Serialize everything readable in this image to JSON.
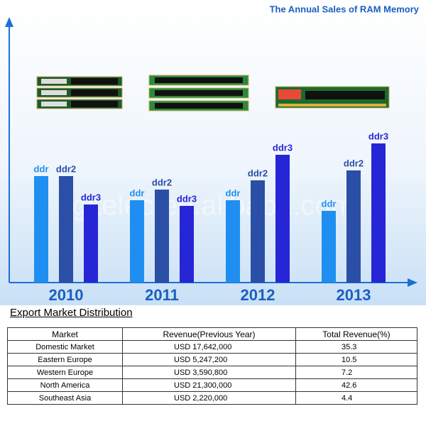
{
  "chart_data": {
    "type": "bar",
    "title": "The Annual Sales of RAM Memory",
    "watermark": "gitelec.en.alibaba.com",
    "categories": [
      "2010",
      "2011",
      "2012",
      "2013"
    ],
    "series": [
      {
        "name": "ddr",
        "color": "#1e8ff0",
        "values": [
          150,
          116,
          116,
          101
        ]
      },
      {
        "name": "ddr2",
        "color": "#2b4ea6",
        "values": [
          150,
          131,
          144,
          158
        ]
      },
      {
        "name": "ddr3",
        "color": "#2626d6",
        "values": [
          110,
          108,
          180,
          196
        ]
      }
    ],
    "ylim": [
      0,
      360
    ]
  },
  "table": {
    "title": "Export Market Distribution",
    "columns": [
      "Market",
      "Revenue(Previous Year)",
      "Total Revenue(%)"
    ],
    "rows": [
      [
        "Domestic Market",
        "USD 17,642,000",
        "35.3"
      ],
      [
        "Eastern Europe",
        "USD 5,247,200",
        "10.5"
      ],
      [
        "Western Europe",
        "USD 3,590,800",
        "7.2"
      ],
      [
        "North America",
        "USD 21,300,000",
        "42.6"
      ],
      [
        "Southeast Asia",
        "USD 2,220,000",
        "4.4"
      ]
    ]
  }
}
